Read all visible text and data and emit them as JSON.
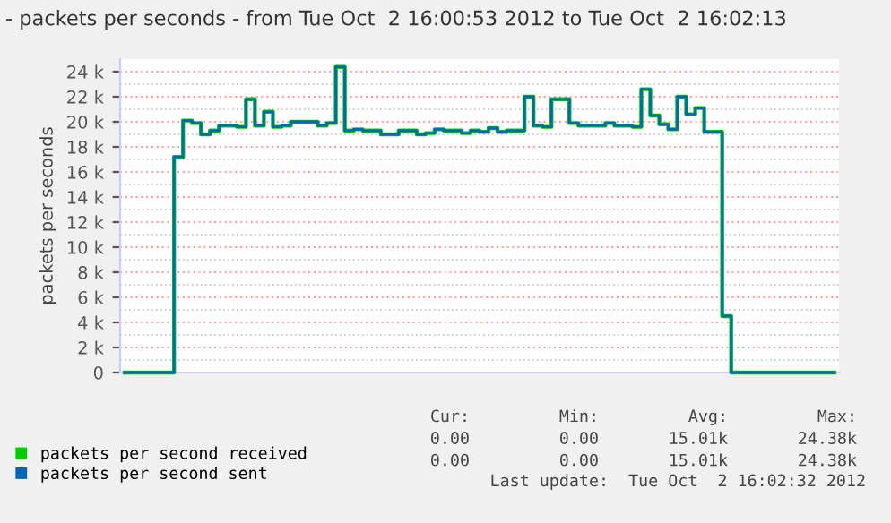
{
  "chart_data": {
    "type": "step",
    "title": "- packets per seconds - from Tue Oct  2 16:00:53 2012 to Tue Oct  2 16:02:13",
    "ylabel": "packets per seconds",
    "categories": [
      null,
      null,
      null,
      null,
      null,
      null,
      null,
      null,
      null,
      null,
      null,
      null,
      null,
      null,
      null,
      null,
      null,
      null,
      null,
      null,
      null,
      null,
      null,
      null,
      null,
      null,
      null,
      null,
      null,
      null,
      null,
      null,
      null,
      null,
      null,
      null,
      null,
      null,
      null,
      null,
      null,
      null,
      null,
      null,
      null,
      null,
      null,
      null,
      null,
      null,
      null,
      null,
      null,
      null,
      null,
      null,
      null,
      null,
      null,
      null,
      null,
      null,
      null,
      null,
      null,
      null,
      null,
      null,
      null,
      null,
      null,
      null,
      null,
      null,
      null,
      null,
      null,
      null,
      null,
      null
    ],
    "series": [
      {
        "name": "packets per second received",
        "color": "#00cc00",
        "values": [
          0,
          0,
          0,
          0,
          0,
          0,
          17200,
          20100,
          19900,
          19000,
          19300,
          19700,
          19700,
          19600,
          21800,
          19700,
          20800,
          19600,
          19700,
          20000,
          20000,
          20000,
          19700,
          19900,
          24380,
          19300,
          19400,
          19300,
          19300,
          19000,
          19000,
          19300,
          19300,
          19000,
          19100,
          19400,
          19300,
          19300,
          19100,
          19300,
          19200,
          19500,
          19200,
          19300,
          19300,
          22000,
          19700,
          19600,
          21800,
          21800,
          19900,
          19700,
          19700,
          19700,
          19900,
          19700,
          19700,
          19600,
          22600,
          20500,
          19800,
          19400,
          22000,
          20600,
          21100,
          19200,
          19200,
          4500,
          0,
          0,
          0,
          0,
          0,
          0,
          0,
          0,
          0,
          0,
          0,
          0
        ]
      },
      {
        "name": "packets per second sent",
        "color": "#0066b3",
        "values": [
          0,
          0,
          0,
          0,
          0,
          0,
          17200,
          20100,
          19900,
          19000,
          19300,
          19700,
          19700,
          19600,
          21800,
          19700,
          20800,
          19600,
          19700,
          20000,
          20000,
          20000,
          19700,
          19900,
          24380,
          19300,
          19400,
          19300,
          19300,
          19000,
          19000,
          19300,
          19300,
          19000,
          19100,
          19400,
          19300,
          19300,
          19100,
          19300,
          19200,
          19500,
          19200,
          19300,
          19300,
          22000,
          19700,
          19600,
          21800,
          21800,
          19900,
          19700,
          19700,
          19700,
          19900,
          19700,
          19700,
          19600,
          22600,
          20500,
          19800,
          19400,
          22000,
          20600,
          21100,
          19200,
          19200,
          4500,
          0,
          0,
          0,
          0,
          0,
          0,
          0,
          0,
          0,
          0,
          0,
          0
        ]
      }
    ],
    "ylim": [
      0,
      25000
    ],
    "yticks": [
      0,
      {
        "value": 2000,
        "label": "2 k"
      },
      {
        "value": 4000,
        "label": "4 k"
      },
      {
        "value": 6000,
        "label": "6 k"
      },
      {
        "value": 8000,
        "label": "8 k"
      },
      {
        "value": 10000,
        "label": "10 k"
      },
      {
        "value": 12000,
        "label": "12 k"
      },
      {
        "value": 14000,
        "label": "14 k"
      },
      {
        "value": 16000,
        "label": "16 k"
      },
      {
        "value": 18000,
        "label": "18 k"
      },
      {
        "value": 20000,
        "label": "20 k"
      },
      {
        "value": 22000,
        "label": "22 k"
      },
      {
        "value": 24000,
        "label": "24 k"
      }
    ],
    "grid": "y",
    "legend": "bottom left",
    "annotations": [
      "Cur:",
      "Min:",
      "Avg:",
      "Max:",
      "0.00",
      "0.00",
      "15.01k",
      "24.38k",
      "0.00",
      "0.00",
      "15.01k",
      "24.38k",
      "Last update:  Tue Oct  2 16:02:32 2012"
    ]
  }
}
